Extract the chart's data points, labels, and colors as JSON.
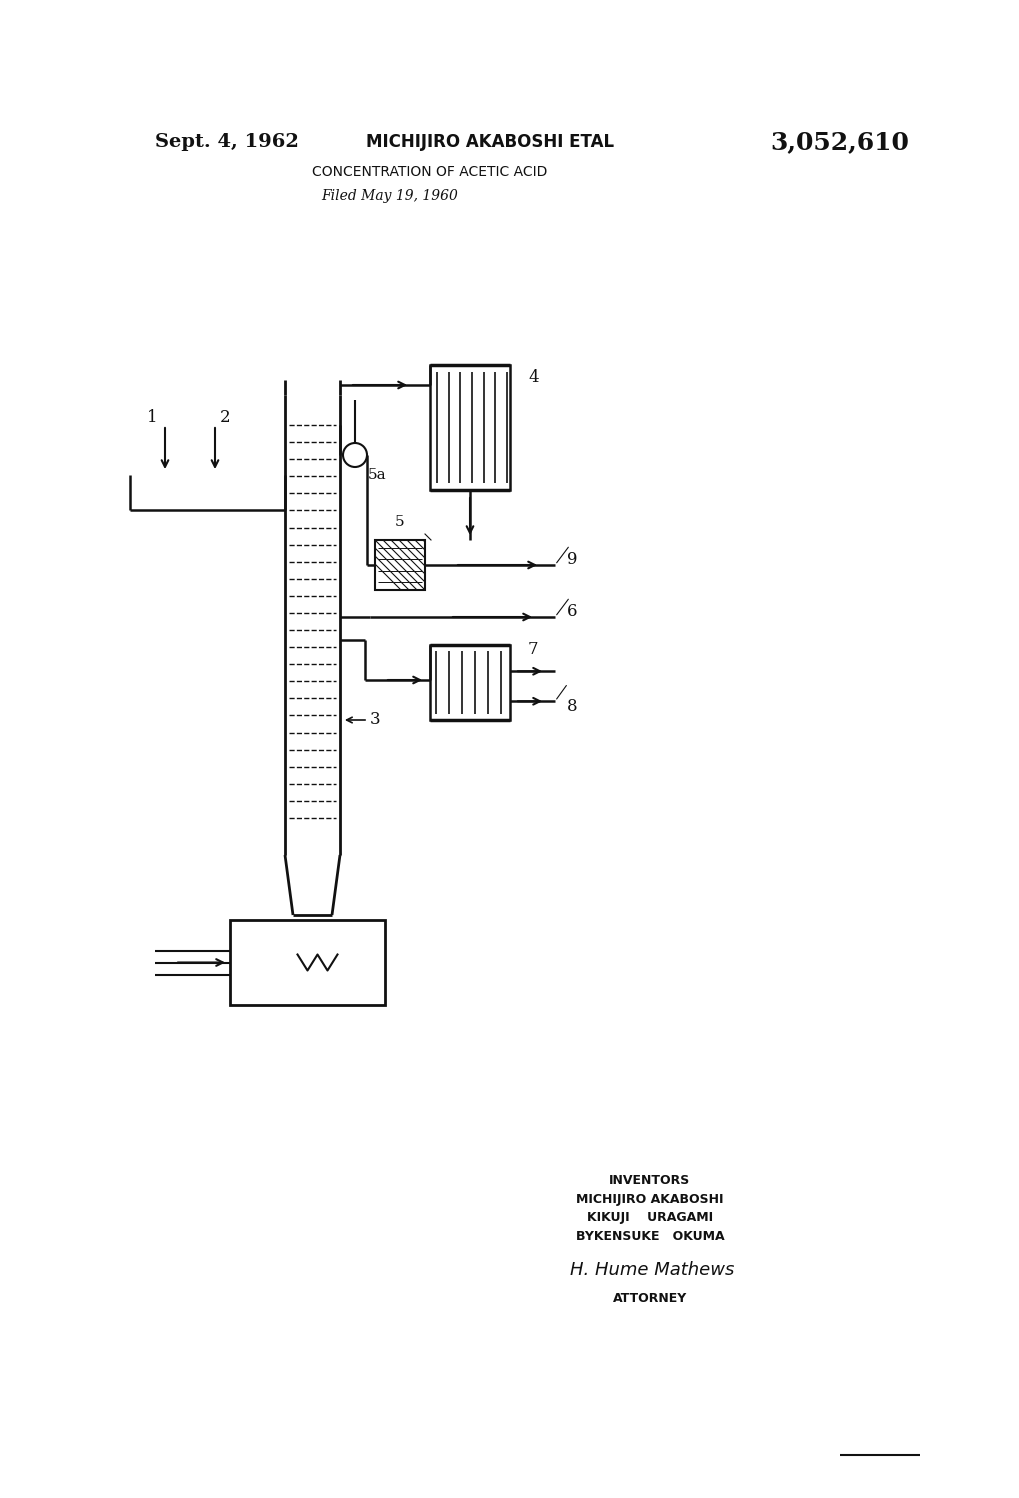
{
  "bg_color": "#ffffff",
  "line_color": "#111111",
  "title_date": "Sept. 4, 1962",
  "title_name": "MICHIJIRO AKABOSHI ETAL",
  "title_patent": "3,052,610",
  "title_sub1": "CONCENTRATION OF ACETIC ACID",
  "title_sub2": "Filed May 19, 1960",
  "inventors_line1": "INVENTORS",
  "inventors_line2": "MICHIJIRO AKABOSHI",
  "inventors_line3": "KIKUJI    URAGAMI",
  "inventors_line4": "BYKENSUKE   OKUMA",
  "attorney_label": "ATTORNEY"
}
